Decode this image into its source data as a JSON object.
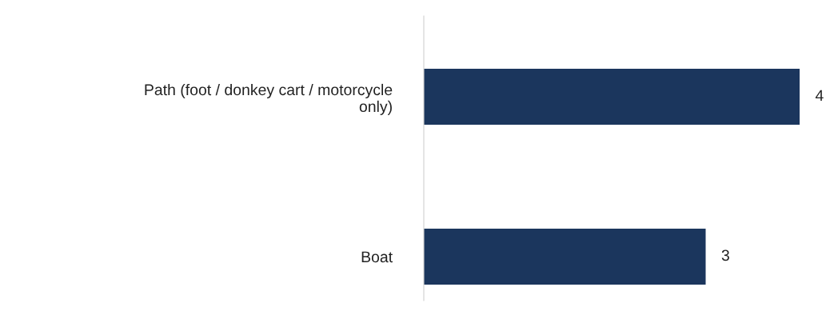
{
  "chart_data": {
    "type": "bar",
    "orientation": "horizontal",
    "categories": [
      "Path (foot / donkey cart / motorcycle only)",
      "Boat"
    ],
    "values": [
      4,
      3
    ],
    "color": "#1b365d",
    "data_labels": true,
    "grid": false,
    "legend": false,
    "tick_labels": "y"
  }
}
